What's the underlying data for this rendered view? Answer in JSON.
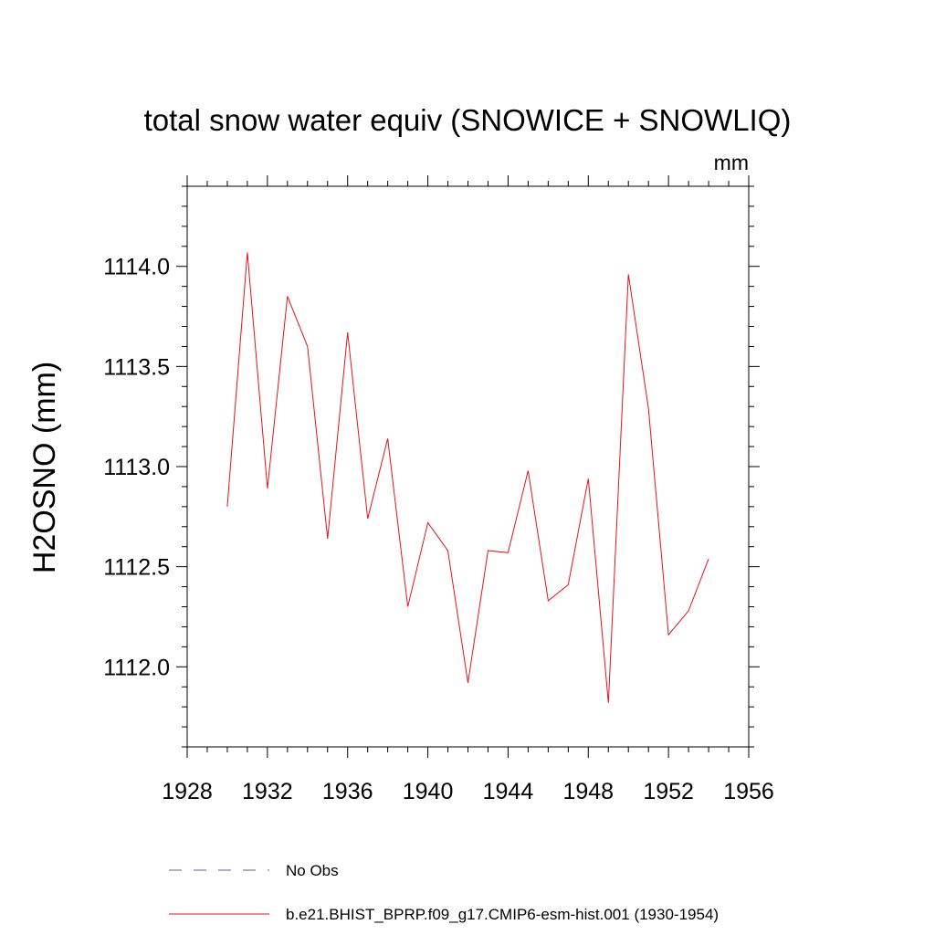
{
  "chart_data": {
    "type": "line",
    "title": "total snow water equiv (SNOWICE + SNOWLIQ)",
    "units_label": "mm",
    "ylabel": "H2OSNO  (mm)",
    "xlabel": "",
    "xlim": [
      1928,
      1956
    ],
    "ylim": [
      1111.6,
      1114.4
    ],
    "x_ticks": [
      1928,
      1932,
      1936,
      1940,
      1944,
      1948,
      1952,
      1956
    ],
    "x_tick_labels": [
      "1928",
      "1932",
      "1936",
      "1940",
      "1944",
      "1948",
      "1952",
      "1956"
    ],
    "y_ticks": [
      1112.0,
      1112.5,
      1113.0,
      1113.5,
      1114.0
    ],
    "y_tick_labels": [
      "1112.0",
      "1112.5",
      "1113.0",
      "1113.5",
      "1114.0"
    ],
    "grid": false,
    "legend_position": "bottom",
    "series": [
      {
        "name": "b.e21.BHIST_BPRP.f09_g17.CMIP6-esm-hist.001 (1930-1954)",
        "color": "#e8121b",
        "style": "solid",
        "x": [
          1930,
          1931,
          1932,
          1933,
          1934,
          1935,
          1936,
          1937,
          1938,
          1939,
          1940,
          1941,
          1942,
          1943,
          1944,
          1945,
          1946,
          1947,
          1948,
          1949,
          1950,
          1951,
          1952,
          1953,
          1954
        ],
        "y": [
          1112.8,
          1114.07,
          1112.89,
          1113.85,
          1113.6,
          1112.64,
          1113.67,
          1112.74,
          1113.14,
          1112.3,
          1112.72,
          1112.58,
          1111.92,
          1112.58,
          1112.57,
          1112.98,
          1112.33,
          1112.41,
          1112.94,
          1111.82,
          1113.96,
          1113.29,
          1112.16,
          1112.28,
          1112.54
        ]
      }
    ],
    "legend": [
      {
        "label": "No Obs",
        "color": "#5a5aa8",
        "style": "dashed"
      },
      {
        "label": "b.e21.BHIST_BPRP.f09_g17.CMIP6-esm-hist.001 (1930-1954)",
        "color": "#e8121b",
        "style": "solid"
      }
    ]
  }
}
